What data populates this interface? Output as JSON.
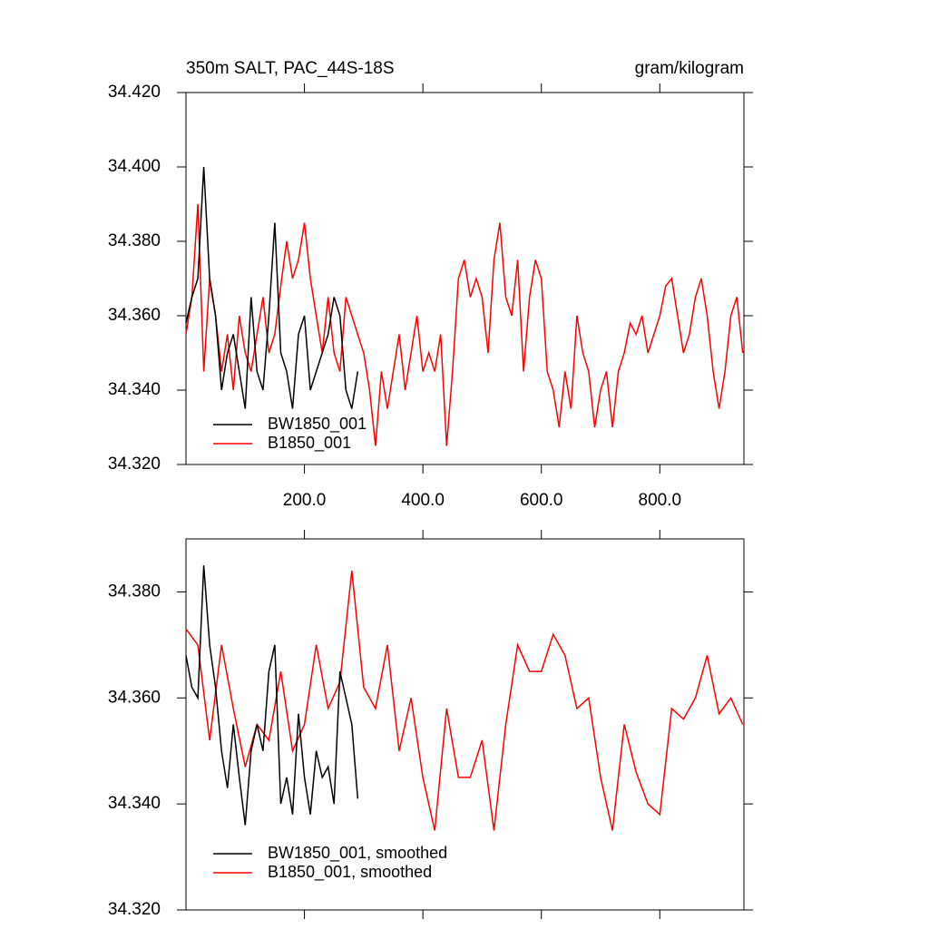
{
  "chart_data": [
    {
      "type": "line",
      "title": "350m SALT, PAC_44S-18S",
      "units": "gram/kilogram",
      "xlim": [
        0,
        942
      ],
      "ylim": [
        34.32,
        34.42
      ],
      "xticks": [
        {
          "value": 200,
          "label": "200.0"
        },
        {
          "value": 400,
          "label": "400.0"
        },
        {
          "value": 600,
          "label": "600.0"
        },
        {
          "value": 800,
          "label": "800.0"
        }
      ],
      "yticks": [
        {
          "value": 34.32,
          "label": "34.320"
        },
        {
          "value": 34.34,
          "label": "34.340"
        },
        {
          "value": 34.36,
          "label": "34.360"
        },
        {
          "value": 34.38,
          "label": "34.380"
        },
        {
          "value": 34.4,
          "label": "34.400"
        },
        {
          "value": 34.42,
          "label": "34.420"
        }
      ],
      "legend": "lower-left",
      "series": [
        {
          "name": "BW1850_001",
          "color": "#000000",
          "x": [
            0,
            10,
            20,
            30,
            40,
            50,
            60,
            70,
            80,
            90,
            100,
            110,
            120,
            130,
            140,
            150,
            160,
            170,
            180,
            190,
            200,
            210,
            220,
            230,
            240,
            250,
            260,
            270,
            280,
            290
          ],
          "values": [
            34.358,
            34.365,
            34.37,
            34.4,
            34.37,
            34.36,
            34.34,
            34.35,
            34.355,
            34.345,
            34.335,
            34.365,
            34.345,
            34.34,
            34.36,
            34.385,
            34.35,
            34.345,
            34.335,
            34.355,
            34.36,
            34.34,
            34.345,
            34.35,
            34.355,
            34.365,
            34.36,
            34.34,
            34.335,
            34.345
          ]
        },
        {
          "name": "B1850_001",
          "color": "#ff0000",
          "x": [
            0,
            10,
            20,
            30,
            40,
            50,
            60,
            70,
            80,
            90,
            100,
            110,
            120,
            130,
            140,
            150,
            160,
            170,
            180,
            190,
            200,
            210,
            220,
            230,
            240,
            250,
            260,
            270,
            280,
            290,
            300,
            310,
            320,
            330,
            340,
            350,
            360,
            370,
            380,
            390,
            400,
            410,
            420,
            430,
            440,
            450,
            460,
            470,
            480,
            490,
            500,
            510,
            520,
            530,
            540,
            550,
            560,
            570,
            580,
            590,
            600,
            610,
            620,
            630,
            640,
            650,
            660,
            670,
            680,
            690,
            700,
            710,
            720,
            730,
            740,
            750,
            760,
            770,
            780,
            790,
            800,
            810,
            820,
            830,
            840,
            850,
            860,
            870,
            880,
            890,
            900,
            910,
            920,
            930,
            940
          ],
          "values": [
            34.355,
            34.365,
            34.39,
            34.345,
            34.37,
            34.36,
            34.345,
            34.355,
            34.34,
            34.36,
            34.35,
            34.345,
            34.355,
            34.365,
            34.35,
            34.355,
            34.368,
            34.38,
            34.37,
            34.375,
            34.385,
            34.37,
            34.36,
            34.35,
            34.365,
            34.35,
            34.345,
            34.365,
            34.36,
            34.355,
            34.35,
            34.34,
            34.325,
            34.345,
            34.335,
            34.345,
            34.355,
            34.34,
            34.35,
            34.36,
            34.345,
            34.35,
            34.345,
            34.355,
            34.325,
            34.345,
            34.37,
            34.375,
            34.365,
            34.37,
            34.365,
            34.35,
            34.375,
            34.385,
            34.365,
            34.36,
            34.375,
            34.345,
            34.365,
            34.375,
            34.37,
            34.345,
            34.34,
            34.33,
            34.345,
            34.335,
            34.36,
            34.35,
            34.345,
            34.33,
            34.34,
            34.345,
            34.33,
            34.345,
            34.35,
            34.358,
            34.355,
            34.36,
            34.35,
            34.355,
            34.36,
            34.368,
            34.37,
            34.36,
            34.35,
            34.355,
            34.365,
            34.37,
            34.36,
            34.345,
            34.335,
            34.345,
            34.36,
            34.365,
            34.35
          ]
        }
      ]
    },
    {
      "type": "line",
      "xlim": [
        0,
        942
      ],
      "ylim": [
        34.32,
        34.39
      ],
      "yticks": [
        {
          "value": 34.32,
          "label": "34.320"
        },
        {
          "value": 34.34,
          "label": "34.340"
        },
        {
          "value": 34.36,
          "label": "34.360"
        },
        {
          "value": 34.38,
          "label": "34.380"
        }
      ],
      "legend": "lower-left",
      "series": [
        {
          "name": "BW1850_001, smoothed",
          "color": "#000000",
          "x": [
            0,
            10,
            20,
            30,
            40,
            50,
            60,
            70,
            80,
            90,
            100,
            110,
            120,
            130,
            140,
            150,
            160,
            170,
            180,
            190,
            200,
            210,
            220,
            230,
            240,
            250,
            260,
            270,
            280,
            290
          ],
          "values": [
            34.368,
            34.362,
            34.36,
            34.385,
            34.37,
            34.362,
            34.35,
            34.343,
            34.355,
            34.345,
            34.336,
            34.35,
            34.355,
            34.35,
            34.365,
            34.37,
            34.34,
            34.345,
            34.338,
            34.357,
            34.345,
            34.338,
            34.35,
            34.345,
            34.347,
            34.34,
            34.365,
            34.36,
            34.355,
            34.341
          ]
        },
        {
          "name": "B1850_001, smoothed",
          "color": "#ff0000",
          "x": [
            0,
            20,
            40,
            60,
            80,
            100,
            120,
            140,
            160,
            180,
            200,
            220,
            240,
            260,
            280,
            300,
            320,
            340,
            360,
            380,
            400,
            420,
            440,
            460,
            480,
            500,
            520,
            540,
            560,
            580,
            600,
            620,
            640,
            660,
            680,
            700,
            720,
            740,
            760,
            780,
            800,
            820,
            840,
            860,
            880,
            900,
            920,
            940
          ],
          "values": [
            34.373,
            34.37,
            34.352,
            34.37,
            34.358,
            34.347,
            34.355,
            34.352,
            34.365,
            34.35,
            34.355,
            34.37,
            34.358,
            34.363,
            34.384,
            34.362,
            34.358,
            34.37,
            34.35,
            34.36,
            34.345,
            34.335,
            34.358,
            34.345,
            34.345,
            34.352,
            34.335,
            34.355,
            34.37,
            34.365,
            34.365,
            34.372,
            34.368,
            34.358,
            34.36,
            34.345,
            34.335,
            34.355,
            34.346,
            34.34,
            34.338,
            34.358,
            34.356,
            34.36,
            34.368,
            34.357,
            34.36,
            34.355
          ]
        }
      ]
    }
  ]
}
